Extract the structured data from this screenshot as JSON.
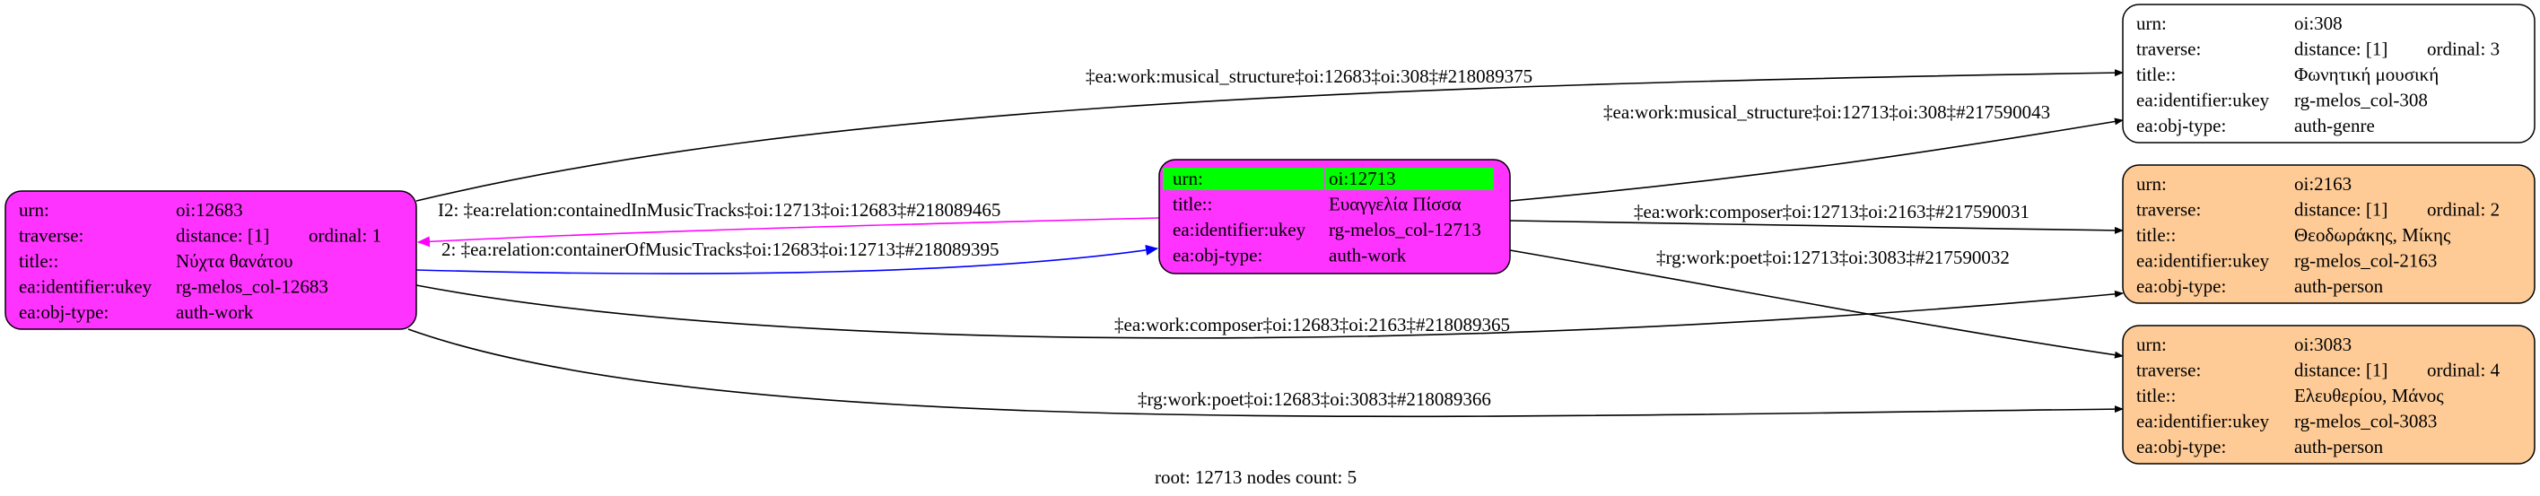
{
  "nodes": [
    {
      "id": "n12683",
      "fill": "#ff33ff",
      "highlight_urn": false,
      "rows": [
        {
          "label": "urn:",
          "value": "oi:12683"
        },
        {
          "label": "traverse:",
          "value": "distance: [1]",
          "extra": "ordinal: 1"
        },
        {
          "label": "title::",
          "value": "Νύχτα θανάτου"
        },
        {
          "label": "ea:identifier:ukey",
          "value": "rg-melos_col-12683"
        },
        {
          "label": "ea:obj-type:",
          "value": "auth-work"
        }
      ]
    },
    {
      "id": "n12713",
      "fill": "#ff33ff",
      "highlight_urn": true,
      "highlight_color": "#00ff00",
      "rows": [
        {
          "label": "urn:",
          "value": "oi:12713"
        },
        {
          "label": "title::",
          "value": "Ευαγγελία Πίσσα"
        },
        {
          "label": "ea:identifier:ukey",
          "value": "rg-melos_col-12713"
        },
        {
          "label": "ea:obj-type:",
          "value": "auth-work"
        }
      ]
    },
    {
      "id": "n308",
      "fill": "#ffffff",
      "highlight_urn": false,
      "rows": [
        {
          "label": "urn:",
          "value": "oi:308"
        },
        {
          "label": "traverse:",
          "value": "distance: [1]",
          "extra": "ordinal: 3"
        },
        {
          "label": "title::",
          "value": "Φωνητική μουσική"
        },
        {
          "label": "ea:identifier:ukey",
          "value": "rg-melos_col-308"
        },
        {
          "label": "ea:obj-type:",
          "value": "auth-genre"
        }
      ]
    },
    {
      "id": "n2163",
      "fill": "#fecb96",
      "highlight_urn": false,
      "rows": [
        {
          "label": "urn:",
          "value": "oi:2163"
        },
        {
          "label": "traverse:",
          "value": "distance: [1]",
          "extra": "ordinal: 2"
        },
        {
          "label": "title::",
          "value": "Θεοδωράκης, Μίκης"
        },
        {
          "label": "ea:identifier:ukey",
          "value": "rg-melos_col-2163"
        },
        {
          "label": "ea:obj-type:",
          "value": "auth-person"
        }
      ]
    },
    {
      "id": "n3083",
      "fill": "#fecb96",
      "highlight_urn": false,
      "rows": [
        {
          "label": "urn:",
          "value": "oi:3083"
        },
        {
          "label": "traverse:",
          "value": "distance: [1]",
          "extra": "ordinal: 4"
        },
        {
          "label": "title::",
          "value": "Ελευθερίου, Μάνος"
        },
        {
          "label": "ea:identifier:ukey",
          "value": "rg-melos_col-3083"
        },
        {
          "label": "ea:obj-type:",
          "value": "auth-person"
        }
      ]
    }
  ],
  "edges": [
    {
      "from": "n12683",
      "to": "n308",
      "color": "#000000",
      "label": "‡ea:work:musical_structure‡oi:12683‡oi:308‡#218089375"
    },
    {
      "from": "n12713",
      "to": "n308",
      "color": "#000000",
      "label": "‡ea:work:musical_structure‡oi:12713‡oi:308‡#217590043"
    },
    {
      "from": "n12713",
      "to": "n12683",
      "color": "#ff00ff",
      "label": "I2: ‡ea:relation:containedInMusicTracks‡oi:12713‡oi:12683‡#218089465"
    },
    {
      "from": "n12683",
      "to": "n12713",
      "color": "#0000ff",
      "label": "2: ‡ea:relation:containerOfMusicTracks‡oi:12683‡oi:12713‡#218089395"
    },
    {
      "from": "n12713",
      "to": "n2163",
      "color": "#000000",
      "label": "‡ea:work:composer‡oi:12713‡oi:2163‡#217590031"
    },
    {
      "from": "n12713",
      "to": "n3083",
      "color": "#000000",
      "label": "‡rg:work:poet‡oi:12713‡oi:3083‡#217590032"
    },
    {
      "from": "n12683",
      "to": "n2163",
      "color": "#000000",
      "label": "‡ea:work:composer‡oi:12683‡oi:2163‡#218089365"
    },
    {
      "from": "n12683",
      "to": "n3083",
      "color": "#000000",
      "label": "‡rg:work:poet‡oi:12683‡oi:3083‡#218089366"
    }
  ],
  "footer": "root: 12713 nodes count: 5"
}
